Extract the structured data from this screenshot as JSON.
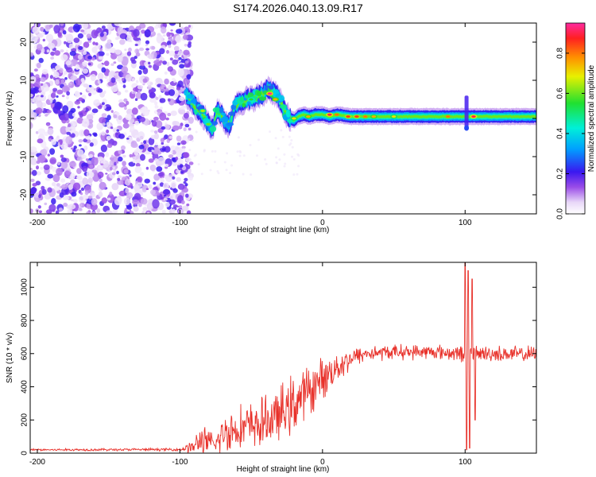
{
  "figure": {
    "title": "S174.2026.040.13.09.R17"
  },
  "chart_data": [
    {
      "type": "heatmap",
      "title": "",
      "xlabel": "Height of straight line (km)",
      "ylabel": "Frequency (Hz)",
      "xlim": [
        -205,
        150
      ],
      "ylim": [
        -25,
        25
      ],
      "xticks": [
        -200,
        -100,
        0,
        100
      ],
      "yticks": [
        -20,
        -10,
        0,
        10,
        20
      ],
      "colorbar": {
        "label": "Normalized spectral amplitude",
        "range": [
          0,
          0.95
        ],
        "ticks": [
          0.0,
          0.2,
          0.4,
          0.6,
          0.8
        ],
        "tick_labels": [
          "0.0",
          "0.2",
          "0.4",
          "0.6",
          "0.8"
        ]
      },
      "noise_region_x": [
        -205,
        -95
      ],
      "signal_track": [
        {
          "x": -95,
          "f": 6
        },
        {
          "x": -92,
          "f": 4.5
        },
        {
          "x": -89,
          "f": 3
        },
        {
          "x": -86,
          "f": 2
        },
        {
          "x": -83,
          "f": 0.5
        },
        {
          "x": -80,
          "f": -1.5
        },
        {
          "x": -77,
          "f": -3
        },
        {
          "x": -74,
          "f": 2
        },
        {
          "x": -71,
          "f": 1
        },
        {
          "x": -68,
          "f": -1
        },
        {
          "x": -65,
          "f": -2
        },
        {
          "x": -62,
          "f": 3
        },
        {
          "x": -59,
          "f": 4
        },
        {
          "x": -56,
          "f": 4.5
        },
        {
          "x": -53,
          "f": 5
        },
        {
          "x": -50,
          "f": 5
        },
        {
          "x": -47,
          "f": 5.5
        },
        {
          "x": -44,
          "f": 6
        },
        {
          "x": -41,
          "f": 6.5
        },
        {
          "x": -38,
          "f": 8
        },
        {
          "x": -35,
          "f": 7
        },
        {
          "x": -32,
          "f": 6
        },
        {
          "x": -29,
          "f": 4
        },
        {
          "x": -26,
          "f": 1.5
        },
        {
          "x": -23,
          "f": 0
        },
        {
          "x": -20,
          "f": -0.5
        },
        {
          "x": -17,
          "f": 0.5
        },
        {
          "x": -13,
          "f": 1
        },
        {
          "x": -9,
          "f": 0.5
        },
        {
          "x": -5,
          "f": 1
        },
        {
          "x": 0,
          "f": 1
        },
        {
          "x": 5,
          "f": 0.5
        },
        {
          "x": 10,
          "f": 1
        },
        {
          "x": 20,
          "f": 0.5
        },
        {
          "x": 30,
          "f": 0.5
        },
        {
          "x": 40,
          "f": 0.5
        },
        {
          "x": 50,
          "f": 0.5
        },
        {
          "x": 60,
          "f": 0.5
        },
        {
          "x": 70,
          "f": 0.5
        },
        {
          "x": 80,
          "f": 0.5
        },
        {
          "x": 90,
          "f": 0.5
        },
        {
          "x": 100,
          "f": 0.5
        },
        {
          "x": 110,
          "f": 0.5
        },
        {
          "x": 120,
          "f": 0.5
        },
        {
          "x": 130,
          "f": 0.5
        },
        {
          "x": 140,
          "f": 0.5
        },
        {
          "x": 150,
          "f": 0.5
        }
      ],
      "peaks": [
        {
          "x": -84,
          "f": 2,
          "amp": 0.65
        },
        {
          "x": -80,
          "f": -1.5,
          "amp": 0.6
        },
        {
          "x": -50,
          "f": 5,
          "amp": 0.55
        },
        {
          "x": -37,
          "f": 6.5,
          "amp": 0.95
        },
        {
          "x": -33,
          "f": 5,
          "amp": 0.75
        },
        {
          "x": -20,
          "f": 0,
          "amp": 0.7
        },
        {
          "x": -10,
          "f": 0.5,
          "amp": 0.75
        },
        {
          "x": 5,
          "f": 1,
          "amp": 0.9
        },
        {
          "x": 10,
          "f": 1,
          "amp": 0.8
        },
        {
          "x": 18,
          "f": 0.5,
          "amp": 0.85
        },
        {
          "x": 24,
          "f": 0.5,
          "amp": 0.85
        },
        {
          "x": 30,
          "f": 0.5,
          "amp": 0.8
        },
        {
          "x": 36,
          "f": 0.5,
          "amp": 0.75
        },
        {
          "x": 50,
          "f": 0.5,
          "amp": 0.7
        },
        {
          "x": 88,
          "f": 0.5,
          "amp": 0.8
        },
        {
          "x": 106,
          "f": 0.5,
          "amp": 0.9
        }
      ],
      "spike": {
        "x": 101,
        "f_range": [
          -3,
          6
        ]
      }
    },
    {
      "type": "line",
      "title": "",
      "xlabel": "Height of straight line (km)",
      "ylabel": "SNR (10 * v/v)",
      "xlim": [
        -205,
        150
      ],
      "ylim": [
        0,
        1150
      ],
      "xticks": [
        -200,
        -100,
        0,
        100
      ],
      "yticks": [
        0,
        200,
        400,
        600,
        800,
        1000
      ],
      "color": "#e8312a",
      "series": [
        {
          "name": "SNR",
          "envelope": [
            {
              "x": -205,
              "base": 20,
              "amp": 8
            },
            {
              "x": -100,
              "base": 22,
              "amp": 10
            },
            {
              "x": -90,
              "base": 40,
              "amp": 60
            },
            {
              "x": -85,
              "base": 80,
              "amp": 120
            },
            {
              "x": -80,
              "base": 60,
              "amp": 100
            },
            {
              "x": -75,
              "base": 50,
              "amp": 70
            },
            {
              "x": -70,
              "base": 120,
              "amp": 150
            },
            {
              "x": -60,
              "base": 150,
              "amp": 160
            },
            {
              "x": -45,
              "base": 170,
              "amp": 180
            },
            {
              "x": -30,
              "base": 230,
              "amp": 200
            },
            {
              "x": -20,
              "base": 300,
              "amp": 220
            },
            {
              "x": -10,
              "base": 370,
              "amp": 190
            },
            {
              "x": 0,
              "base": 450,
              "amp": 150
            },
            {
              "x": 10,
              "base": 520,
              "amp": 120
            },
            {
              "x": 20,
              "base": 570,
              "amp": 80
            },
            {
              "x": 30,
              "base": 600,
              "amp": 60
            },
            {
              "x": 50,
              "base": 610,
              "amp": 55
            },
            {
              "x": 80,
              "base": 610,
              "amp": 55
            },
            {
              "x": 95,
              "base": 600,
              "amp": 60
            },
            {
              "x": 110,
              "base": 600,
              "amp": 60
            },
            {
              "x": 150,
              "base": 595,
              "amp": 60
            }
          ],
          "spike_events": [
            {
              "x": 100,
              "value": 1150
            },
            {
              "x": 101,
              "value": 20
            },
            {
              "x": 102,
              "value": 1100
            },
            {
              "x": 103,
              "value": 30
            },
            {
              "x": 105,
              "value": 1050
            },
            {
              "x": 107,
              "value": 200
            }
          ]
        }
      ]
    }
  ]
}
